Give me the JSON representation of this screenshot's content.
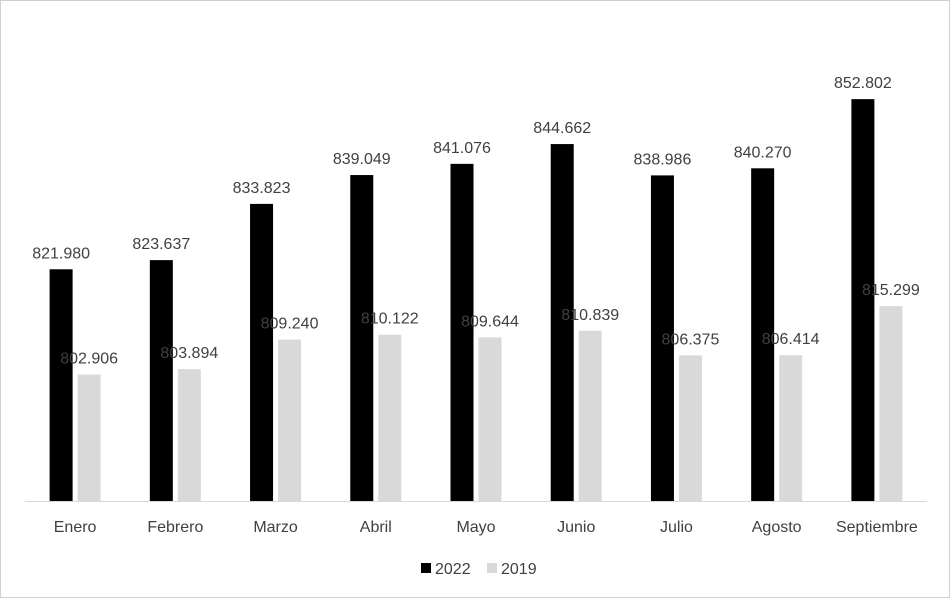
{
  "chart_data": {
    "type": "bar",
    "title": "",
    "xlabel": "",
    "ylabel": "",
    "ylim": [
      780000,
      860000
    ],
    "categories": [
      "Enero",
      "Febrero",
      "Marzo",
      "Abril",
      "Mayo",
      "Junio",
      "Julio",
      "Agosto",
      "Septiembre"
    ],
    "series": [
      {
        "name": "2022",
        "color": "#000000",
        "values": [
          821980,
          823637,
          833823,
          839049,
          841076,
          844662,
          838986,
          840270,
          852802
        ],
        "labels": [
          "821.980",
          "823.637",
          "833.823",
          "839.049",
          "841.076",
          "844.662",
          "838.986",
          "840.270",
          "852.802"
        ]
      },
      {
        "name": "2019",
        "color": "#d9d9d9",
        "values": [
          802906,
          803894,
          809240,
          810122,
          809644,
          810839,
          806375,
          806414,
          815299
        ],
        "labels": [
          "802.906",
          "803.894",
          "809.240",
          "810.122",
          "809.644",
          "810.839",
          "806.375",
          "806.414",
          "815.299"
        ]
      }
    ],
    "legend": "bottom-center",
    "grid": false
  }
}
